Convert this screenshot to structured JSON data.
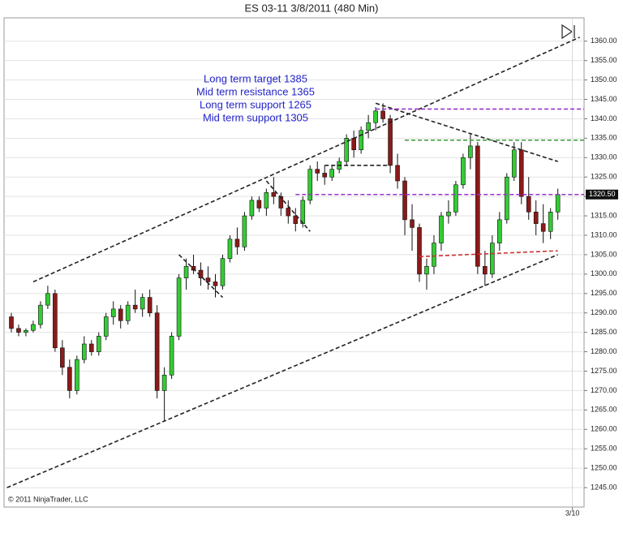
{
  "chart_data": {
    "type": "candlestick",
    "title": "ES 03-11  3/8/2011 (480 Min)",
    "annotations": [
      "Long term target 1385",
      "Mid term resistance 1365",
      "Long term support 1265",
      "Mid term support 1305"
    ],
    "copyright": "© 2011 NinjaTrader, LLC",
    "up_color": "#33cc33",
    "down_color": "#8b1a1a",
    "x": [
      0,
      1,
      2,
      3,
      4,
      5,
      6,
      7,
      8,
      9,
      10,
      11,
      12,
      13,
      14,
      15,
      16,
      17,
      18,
      19,
      20,
      21,
      22,
      23,
      24,
      25,
      26,
      27,
      28,
      29,
      30,
      31,
      32,
      33,
      34,
      35,
      36,
      37,
      38,
      39,
      40,
      41,
      42,
      43,
      44,
      45,
      46,
      47,
      48,
      49,
      50,
      51,
      52,
      53,
      54,
      55,
      56,
      57,
      58,
      59,
      60,
      61,
      62,
      63,
      64,
      65,
      66,
      67,
      68,
      69,
      70,
      71,
      72,
      73,
      74,
      75
    ],
    "open": [
      1289,
      1286,
      1285,
      1285.5,
      1287,
      1292,
      1295,
      1281,
      1276,
      1270,
      1278,
      1282,
      1280,
      1284,
      1289,
      1291,
      1288,
      1292,
      1291,
      1294,
      1290,
      1270,
      1274,
      1284,
      1299,
      1302,
      1301,
      1299,
      1298,
      1297,
      1304,
      1309,
      1307,
      1315,
      1319,
      1317,
      1321,
      1320,
      1317,
      1315,
      1313,
      1319,
      1327,
      1326,
      1325,
      1327,
      1329,
      1335,
      1332,
      1337,
      1339,
      1342,
      1340,
      1328,
      1324,
      1314,
      1312,
      1300,
      1302,
      1308,
      1315,
      1316,
      1323,
      1330,
      1333,
      1302,
      1300,
      1308,
      1314,
      1325,
      1332,
      1320,
      1316,
      1313,
      1311,
      1316
    ],
    "high": [
      1290,
      1287,
      1286,
      1288,
      1293,
      1297,
      1296,
      1283,
      1278,
      1279,
      1284,
      1283,
      1285,
      1290,
      1293,
      1292,
      1293,
      1296,
      1295,
      1296,
      1292,
      1276,
      1285,
      1300,
      1304,
      1305,
      1303,
      1302,
      1300,
      1305,
      1310,
      1312,
      1316,
      1320,
      1320,
      1322,
      1325,
      1321,
      1319,
      1317,
      1320,
      1328,
      1329,
      1328,
      1328,
      1330,
      1336,
      1337,
      1338,
      1341,
      1343,
      1344,
      1341,
      1331,
      1325,
      1318,
      1313,
      1304,
      1310,
      1316,
      1319,
      1324,
      1331,
      1336,
      1334,
      1306,
      1310,
      1316,
      1326,
      1334,
      1334,
      1325,
      1319,
      1318,
      1317,
      1322
    ],
    "low": [
      1285,
      1284,
      1284,
      1285,
      1286,
      1291,
      1280,
      1274,
      1268,
      1269,
      1277,
      1279,
      1279,
      1283,
      1287,
      1286,
      1287,
      1290,
      1289,
      1289,
      1268,
      1262,
      1273,
      1283,
      1296,
      1300,
      1297,
      1296,
      1294,
      1296,
      1303,
      1305,
      1306,
      1314,
      1316,
      1315,
      1318,
      1315,
      1313,
      1311,
      1312,
      1318,
      1324,
      1323,
      1324,
      1326,
      1328,
      1330,
      1331,
      1335,
      1337,
      1339,
      1326,
      1322,
      1310,
      1306,
      1298,
      1296,
      1300,
      1306,
      1313,
      1315,
      1322,
      1327,
      1300,
      1297,
      1299,
      1306,
      1313,
      1324,
      1318,
      1314,
      1310,
      1308,
      1309,
      1314
    ],
    "close": [
      1286,
      1285,
      1285.5,
      1287,
      1292,
      1295,
      1281,
      1276,
      1270,
      1278,
      1282,
      1280,
      1284,
      1289,
      1291,
      1288,
      1292,
      1291,
      1294,
      1290,
      1270,
      1274,
      1284,
      1299,
      1302,
      1301,
      1299,
      1298,
      1297,
      1304,
      1309,
      1307,
      1315,
      1319,
      1317,
      1321,
      1320,
      1317,
      1315,
      1313,
      1319,
      1327,
      1326,
      1325,
      1327,
      1329,
      1335,
      1332,
      1337,
      1339,
      1342,
      1340,
      1328,
      1324,
      1314,
      1312,
      1300,
      1302,
      1308,
      1315,
      1316,
      1323,
      1330,
      1333,
      1302,
      1300,
      1308,
      1314,
      1325,
      1332,
      1320,
      1316,
      1313,
      1311,
      1316,
      1320.5
    ],
    "last_price": {
      "value": 1320.5,
      "label": "1320.50"
    },
    "drawings": [
      {
        "x": [
          3,
          78
        ],
        "y": [
          1298,
          1361
        ],
        "color": "#222222"
      },
      {
        "x": [
          -0.6,
          75
        ],
        "y": [
          1245,
          1305
        ],
        "color": "#222222"
      },
      {
        "x": [
          50,
          75
        ],
        "y": [
          1344,
          1329
        ],
        "color": "#222222"
      },
      {
        "x": [
          43,
          52
        ],
        "y": [
          1328,
          1328
        ],
        "color": "#222222"
      },
      {
        "x": [
          50,
          78.6
        ],
        "y": [
          1342.5,
          1342.5
        ],
        "color": "#9933cc"
      },
      {
        "x": [
          54,
          78.6
        ],
        "y": [
          1334.5,
          1334.5
        ],
        "color": "#339933"
      },
      {
        "x": [
          39,
          78.6
        ],
        "y": [
          1320.5,
          1320.5
        ],
        "color": "#9933cc"
      },
      {
        "x": [
          56,
          75
        ],
        "y": [
          1304.5,
          1306
        ],
        "color": "#cc3333"
      },
      {
        "x": [
          23,
          29
        ],
        "y": [
          1305,
          1294
        ],
        "color": "#222222"
      },
      {
        "x": [
          35,
          41
        ],
        "y": [
          1324,
          1311
        ],
        "color": "#222222"
      }
    ],
    "xlim": [
      -1,
      78.6
    ],
    "xticks": [
      {
        "value": 77,
        "label": "3/10"
      }
    ],
    "ylim": [
      1240,
      1366
    ],
    "yticks": [
      {
        "value": 1245,
        "label": "1245.00"
      },
      {
        "value": 1250,
        "label": "1250.00"
      },
      {
        "value": 1255,
        "label": "1255.00"
      },
      {
        "value": 1260,
        "label": "1260.00"
      },
      {
        "value": 1265,
        "label": "1265.00"
      },
      {
        "value": 1270,
        "label": "1270.00"
      },
      {
        "value": 1275,
        "label": "1275.00"
      },
      {
        "value": 1280,
        "label": "1280.00"
      },
      {
        "value": 1285,
        "label": "1285.00"
      },
      {
        "value": 1290,
        "label": "1290.00"
      },
      {
        "value": 1295,
        "label": "1295.00"
      },
      {
        "value": 1300,
        "label": "1300.00"
      },
      {
        "value": 1305,
        "label": "1305.00"
      },
      {
        "value": 1310,
        "label": "1310.00"
      },
      {
        "value": 1315,
        "label": "1315.00"
      },
      {
        "value": 1320,
        "label": "1320.00"
      },
      {
        "value": 1325,
        "label": "1325.00"
      },
      {
        "value": 1330,
        "label": "1330.00"
      },
      {
        "value": 1335,
        "label": "1335.00"
      },
      {
        "value": 1340,
        "label": "1340.00"
      },
      {
        "value": 1345,
        "label": "1345.00"
      },
      {
        "value": 1350,
        "label": "1350.00"
      },
      {
        "value": 1355,
        "label": "1355.00"
      },
      {
        "value": 1360,
        "label": "1360.00"
      }
    ],
    "grid": true
  }
}
